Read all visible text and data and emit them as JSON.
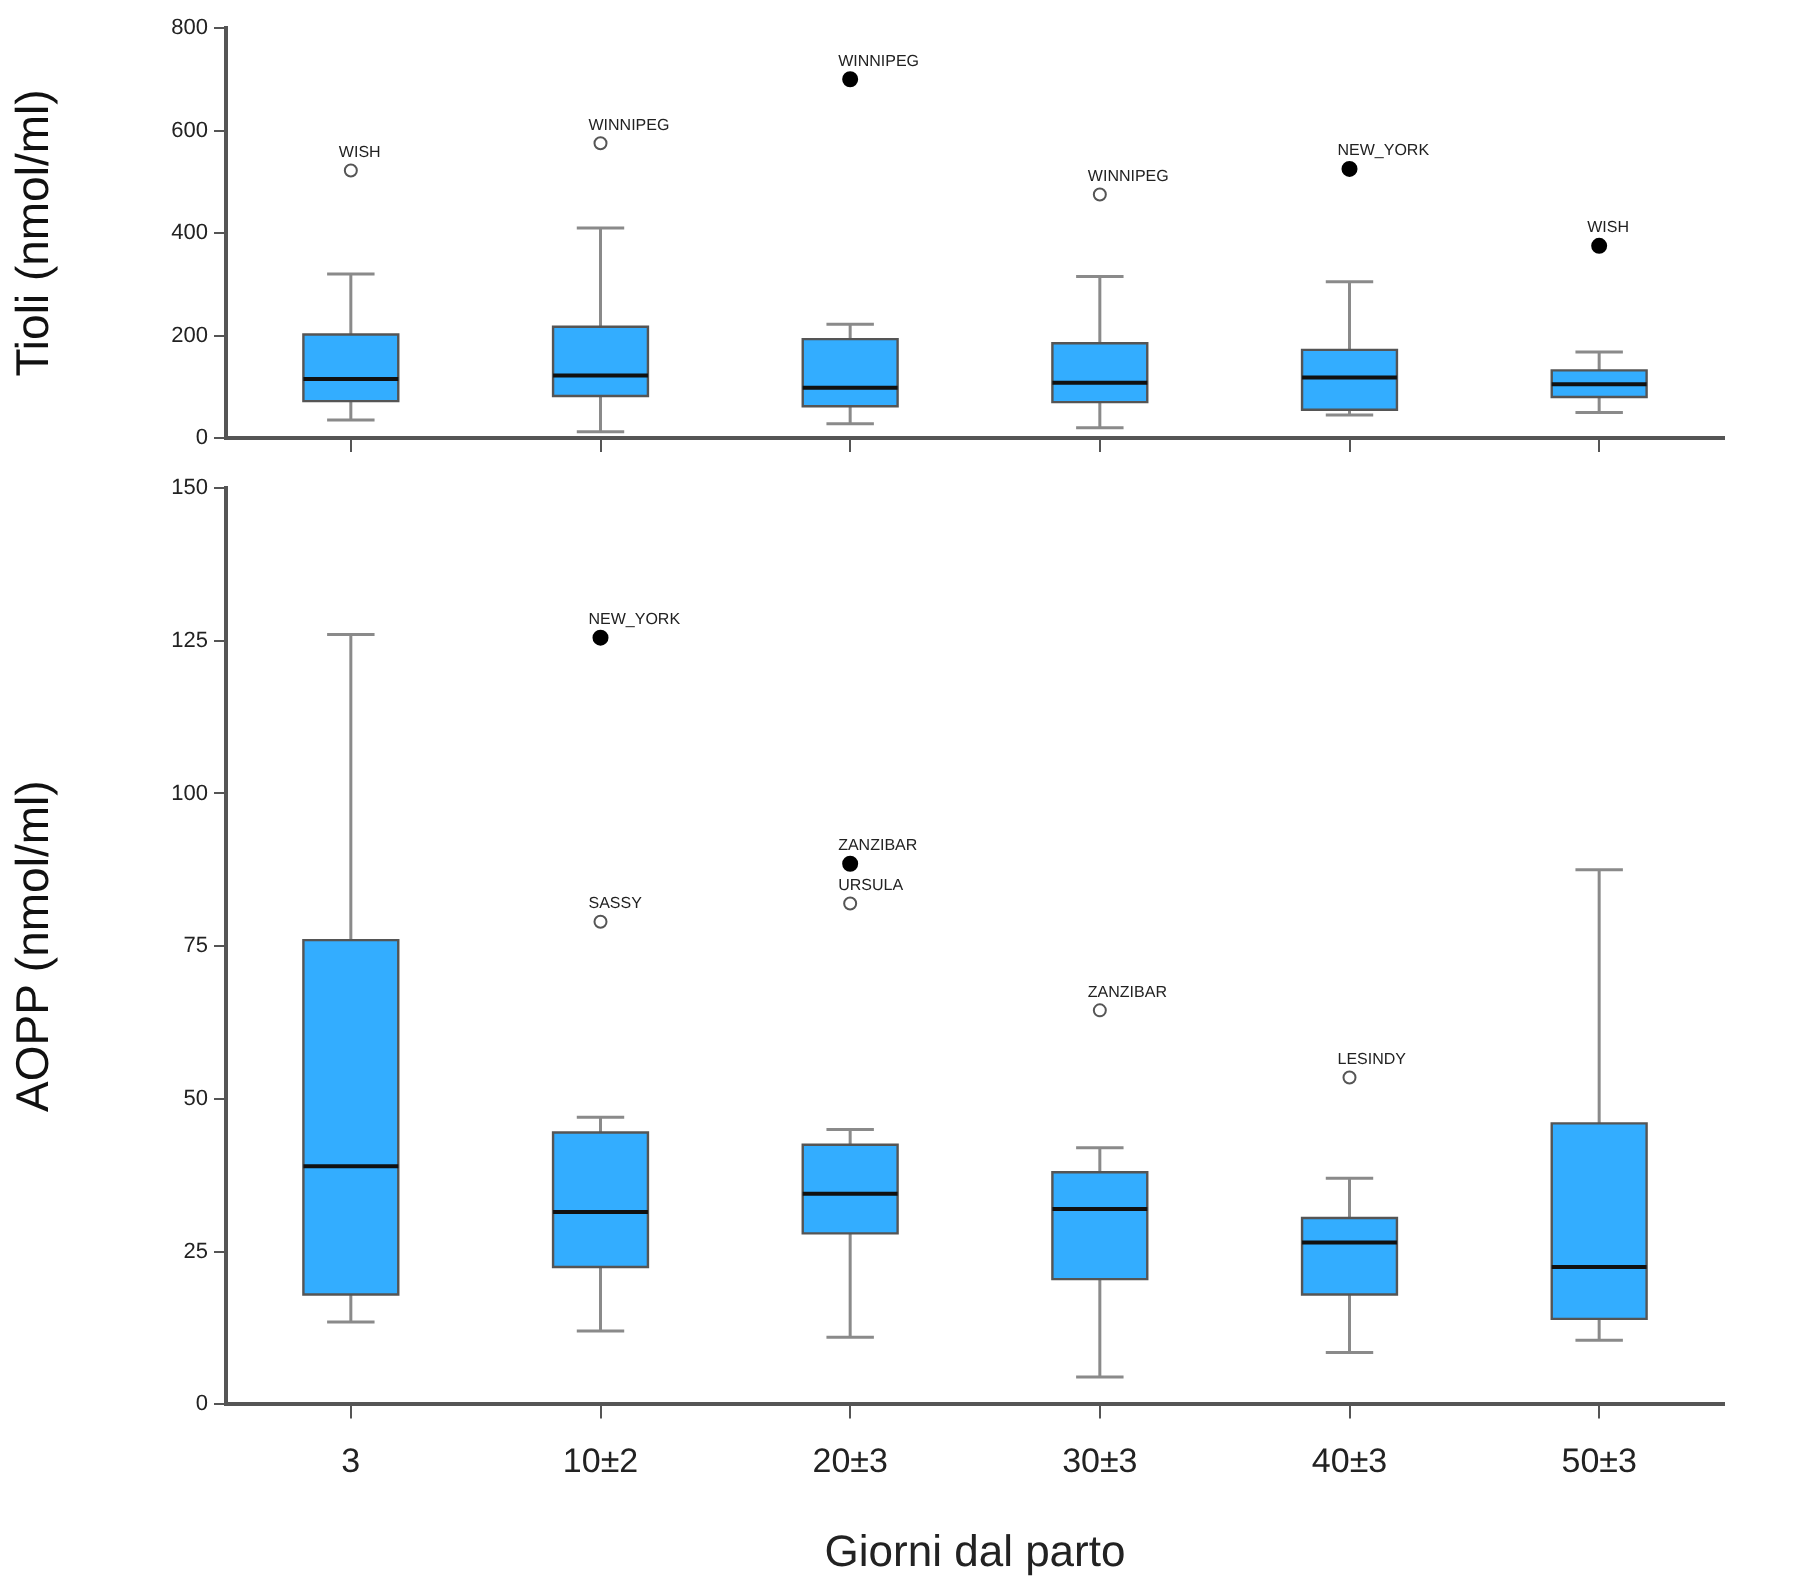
{
  "chart_data": [
    {
      "type": "box",
      "ylabel": "Tioli (nmol/ml)",
      "categories": [
        "3",
        "10±2",
        "20±3",
        "30±3",
        "40±3",
        "50±3"
      ],
      "ylim": [
        0,
        800
      ],
      "yticks": [
        0,
        200,
        400,
        600,
        800
      ],
      "grid": false,
      "legend": false,
      "tick_labels": "y",
      "series": [
        {
          "type": "box",
          "color": "#33adff",
          "boxes": [
            {
              "low": 35,
              "q1": 72,
              "median": 115,
              "q3": 202,
              "high": 320,
              "outliers": [
                522
              ]
            },
            {
              "low": 12,
              "q1": 82,
              "median": 122,
              "q3": 217,
              "high": 410,
              "outliers": [
                575
              ]
            },
            {
              "low": 28,
              "q1": 62,
              "median": 98,
              "q3": 193,
              "high": 222
            },
            {
              "low": 20,
              "q1": 70,
              "median": 108,
              "q3": 185,
              "high": 315,
              "outliers": [
                475
              ]
            },
            {
              "low": 45,
              "q1": 55,
              "median": 118,
              "q3": 172,
              "high": 305
            },
            {
              "low": 50,
              "q1": 80,
              "median": 105,
              "q3": 132,
              "high": 168
            }
          ]
        },
        {
          "type": "scatter",
          "color": "#000000",
          "x": [
            "20±3",
            "40±3",
            "50±3"
          ],
          "values": [
            700,
            525,
            375
          ]
        }
      ],
      "annotations": [
        "WISH",
        "WINNIPEG",
        {
          "text": "WINNIPEG",
          "x": "20±3",
          "y": 700
        },
        "WINNIPEG",
        {
          "text": "NEW_YORK",
          "x": "40±3",
          "y": 525
        },
        {
          "text": "WISH",
          "x": "50±3",
          "y": 375
        }
      ]
    },
    {
      "type": "box",
      "ylabel": "AOPP (nmol/ml)",
      "xlabel": "Giorni dal parto",
      "categories": [
        "3",
        "10±2",
        "20±3",
        "30±3",
        "40±3",
        "50±3"
      ],
      "ylim": [
        0,
        150
      ],
      "yticks": [
        0,
        25,
        50,
        75,
        100,
        125,
        150
      ],
      "grid": false,
      "legend": false,
      "series": [
        {
          "type": "box",
          "color": "#33adff",
          "boxes": [
            {
              "low": 13.5,
              "q1": 18,
              "median": 39,
              "q3": 76,
              "high": 126
            },
            {
              "low": 12,
              "q1": 22.5,
              "median": 31.5,
              "q3": 44.5,
              "high": 47,
              "outliers": [
                79
              ]
            },
            {
              "low": 11,
              "q1": 28,
              "median": 34.5,
              "q3": 42.5,
              "high": 45,
              "outliers": [
                82
              ]
            },
            {
              "low": 4.5,
              "q1": 20.5,
              "median": 32,
              "q3": 38,
              "high": 42,
              "outliers": [
                64.5
              ]
            },
            {
              "low": 8.5,
              "q1": 18,
              "median": 26.5,
              "q3": 30.5,
              "high": 37,
              "outliers": [
                53.5
              ]
            },
            {
              "low": 10.5,
              "q1": 14,
              "median": 22.5,
              "q3": 46,
              "high": 87.5
            }
          ]
        },
        {
          "type": "scatter",
          "color": "#000000",
          "x": [
            "10±2",
            "20±3"
          ],
          "values": [
            125.5,
            88.5
          ]
        }
      ],
      "annotations": [
        {
          "text": "NEW_YORK",
          "x": "10±2",
          "y": 125.5
        },
        "SASSY",
        {
          "text": "ZANZIBAR",
          "x": "20±3",
          "y": 88.5
        },
        "URSULA",
        "ZANZIBAR",
        "LESINDY"
      ]
    }
  ]
}
